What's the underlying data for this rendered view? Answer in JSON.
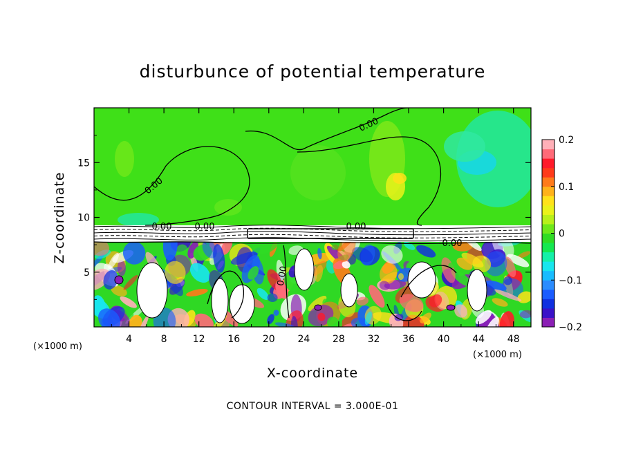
{
  "chart_data": {
    "type": "heatmap",
    "title": "disturbunce of potential temperature",
    "xlabel": "X-coordinate",
    "ylabel": "Z-coordinate",
    "x_unit": "(×1000 m)",
    "x_unit_right": "(×1000 m)",
    "xlim": [
      0,
      50
    ],
    "ylim": [
      0,
      20
    ],
    "x_ticks": [
      4,
      8,
      12,
      16,
      20,
      24,
      28,
      32,
      36,
      40,
      44,
      48
    ],
    "y_ticks": [
      5,
      10,
      15
    ],
    "colorbar": {
      "range": [
        -0.2,
        0.2
      ],
      "tick_labels": [
        "0.2",
        "0.1",
        "0",
        "−0.1",
        "−0.2"
      ],
      "tick_values": [
        0.2,
        0.1,
        0,
        -0.1,
        -0.2
      ],
      "colors": [
        "#8b1fb5",
        "#3a12c8",
        "#1030e0",
        "#1a5cff",
        "#2a8cff",
        "#18bcff",
        "#18e6ee",
        "#14f0a8",
        "#14e850",
        "#2fdc24",
        "#6ee81a",
        "#b8f01a",
        "#eaf21a",
        "#ffe21a",
        "#ffb21a",
        "#ff7a1a",
        "#ff3a1a",
        "#ff1a2a",
        "#ff6a78",
        "#ffb0b8"
      ]
    },
    "contour_labels": [
      "0.00",
      "0.00",
      "0.00",
      "0.00",
      "0.00",
      "0.00",
      "0.00"
    ],
    "contour_interval_text": "CONTOUR INTERVAL = 3.000E-01"
  }
}
